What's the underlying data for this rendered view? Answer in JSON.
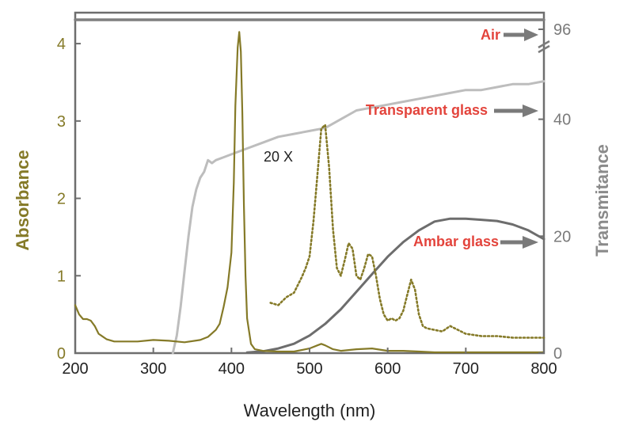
{
  "chart_data": {
    "type": "line",
    "title": "",
    "xlabel": "Wavelength (nm)",
    "ylabel_left": "Absorbance",
    "ylabel_right": "Transmitance",
    "xlim": [
      200,
      800
    ],
    "ylim_left": [
      0,
      4.4
    ],
    "x_ticks": [
      "200",
      "300",
      "400",
      "500",
      "600",
      "700",
      "800"
    ],
    "y_left_ticks": [
      "0",
      "1",
      "2",
      "3",
      "4"
    ],
    "y_right_ticks": [
      "0",
      "20",
      "40",
      "96"
    ],
    "right_axis_break": true,
    "grid": false,
    "colors": {
      "absorbance": "#857a28",
      "air": "#7f7f7f",
      "transparent": "#bdbdbd",
      "ambar": "#6d6d6d",
      "annotation": "#e3443c",
      "arrow": "#7a7a7a"
    },
    "annotations": {
      "air": "Air",
      "transparent": "Transparent glass",
      "ambar": "Ambar glass",
      "zoom": "20 X"
    },
    "series": [
      {
        "name": "Absorbance",
        "axis": "left",
        "x": [
          200,
          205,
          210,
          215,
          220,
          225,
          230,
          240,
          250,
          260,
          280,
          300,
          320,
          340,
          360,
          370,
          380,
          385,
          390,
          395,
          400,
          403,
          405,
          408,
          410,
          412,
          414,
          416,
          418,
          420,
          425,
          430,
          440,
          460,
          480,
          500,
          510,
          515,
          520,
          530,
          540,
          560,
          580,
          600,
          620,
          640,
          660,
          700,
          750,
          800
        ],
        "y": [
          0.62,
          0.5,
          0.44,
          0.44,
          0.42,
          0.35,
          0.25,
          0.18,
          0.15,
          0.15,
          0.15,
          0.17,
          0.16,
          0.14,
          0.17,
          0.21,
          0.3,
          0.38,
          0.6,
          0.85,
          1.3,
          2.2,
          3.2,
          3.95,
          4.15,
          3.9,
          3.1,
          1.9,
          1.0,
          0.45,
          0.12,
          0.05,
          0.03,
          0.02,
          0.02,
          0.06,
          0.1,
          0.12,
          0.1,
          0.05,
          0.03,
          0.05,
          0.06,
          0.03,
          0.03,
          0.02,
          0.01,
          0.01,
          0.01,
          0.01
        ]
      },
      {
        "name": "20 X",
        "axis": "left",
        "style": "dotted",
        "x": [
          450,
          460,
          470,
          480,
          490,
          495,
          500,
          505,
          510,
          515,
          520,
          525,
          530,
          535,
          540,
          545,
          550,
          555,
          560,
          565,
          570,
          575,
          580,
          585,
          590,
          595,
          600,
          605,
          610,
          615,
          620,
          625,
          630,
          635,
          640,
          645,
          650,
          660,
          670,
          680,
          690,
          700,
          720,
          740,
          760,
          780,
          800
        ],
        "y": [
          0.65,
          0.62,
          0.72,
          0.78,
          0.98,
          1.1,
          1.25,
          1.7,
          2.3,
          2.9,
          2.95,
          2.4,
          1.6,
          1.1,
          1.0,
          1.2,
          1.42,
          1.35,
          1.0,
          0.95,
          1.1,
          1.28,
          1.25,
          1.0,
          0.7,
          0.5,
          0.42,
          0.45,
          0.42,
          0.45,
          0.55,
          0.75,
          0.95,
          0.82,
          0.5,
          0.35,
          0.32,
          0.3,
          0.28,
          0.35,
          0.3,
          0.25,
          0.22,
          0.22,
          0.2,
          0.2,
          0.2
        ]
      },
      {
        "name": "Air",
        "axis": "right",
        "x": [
          200,
          300,
          400,
          500,
          600,
          700,
          800
        ],
        "y": [
          98,
          98,
          98,
          98,
          98,
          98,
          98
        ]
      },
      {
        "name": "Transparent glass",
        "axis": "right",
        "x": [
          325,
          330,
          335,
          340,
          345,
          350,
          355,
          360,
          365,
          370,
          375,
          380,
          390,
          400,
          420,
          440,
          460,
          480,
          500,
          520,
          540,
          560,
          580,
          600,
          620,
          640,
          660,
          680,
          700,
          720,
          740,
          760,
          780,
          800
        ],
        "y": [
          0,
          3,
          8,
          14,
          20,
          25,
          28,
          30,
          31,
          33,
          32.5,
          33,
          33.5,
          34,
          35,
          36,
          37,
          37.5,
          38,
          38.5,
          40,
          41.5,
          42,
          42.5,
          43,
          43.5,
          44,
          44.5,
          45,
          45,
          45.5,
          46,
          46,
          46.5
        ]
      },
      {
        "name": "Ambar glass",
        "axis": "right",
        "x": [
          420,
          440,
          460,
          480,
          500,
          520,
          540,
          560,
          580,
          600,
          620,
          640,
          660,
          680,
          700,
          720,
          740,
          760,
          780,
          800
        ],
        "y": [
          0.1,
          0.3,
          0.8,
          1.6,
          3.0,
          5.0,
          7.5,
          10.5,
          13.5,
          16.5,
          19.0,
          21.0,
          22.5,
          23.0,
          23.0,
          22.8,
          22.6,
          22.0,
          21.0,
          19.5
        ]
      }
    ]
  }
}
